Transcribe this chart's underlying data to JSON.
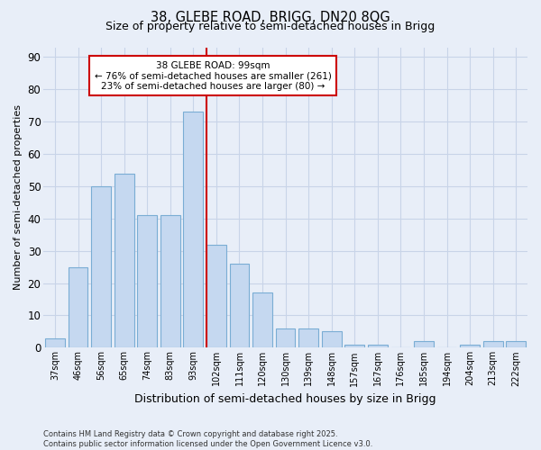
{
  "title1": "38, GLEBE ROAD, BRIGG, DN20 8QG",
  "title2": "Size of property relative to semi-detached houses in Brigg",
  "xlabel": "Distribution of semi-detached houses by size in Brigg",
  "ylabel": "Number of semi-detached properties",
  "categories": [
    "37sqm",
    "46sqm",
    "56sqm",
    "65sqm",
    "74sqm",
    "83sqm",
    "93sqm",
    "102sqm",
    "111sqm",
    "120sqm",
    "130sqm",
    "139sqm",
    "148sqm",
    "157sqm",
    "167sqm",
    "176sqm",
    "185sqm",
    "194sqm",
    "204sqm",
    "213sqm",
    "222sqm"
  ],
  "values": [
    3,
    25,
    50,
    54,
    41,
    41,
    73,
    32,
    26,
    17,
    6,
    6,
    5,
    1,
    1,
    0,
    2,
    0,
    1,
    2,
    2
  ],
  "bar_color": "#c5d8f0",
  "bar_edge_color": "#7aadd4",
  "vline_color": "#cc0000",
  "annotation_text": "38 GLEBE ROAD: 99sqm\n← 76% of semi-detached houses are smaller (261)\n23% of semi-detached houses are larger (80) →",
  "annotation_box_color": "#ffffff",
  "annotation_box_edge_color": "#cc0000",
  "ylim": [
    0,
    93
  ],
  "yticks": [
    0,
    10,
    20,
    30,
    40,
    50,
    60,
    70,
    80,
    90
  ],
  "grid_color": "#c8d4e8",
  "bg_color": "#e8eef8",
  "footnote": "Contains HM Land Registry data © Crown copyright and database right 2025.\nContains public sector information licensed under the Open Government Licence v3.0."
}
